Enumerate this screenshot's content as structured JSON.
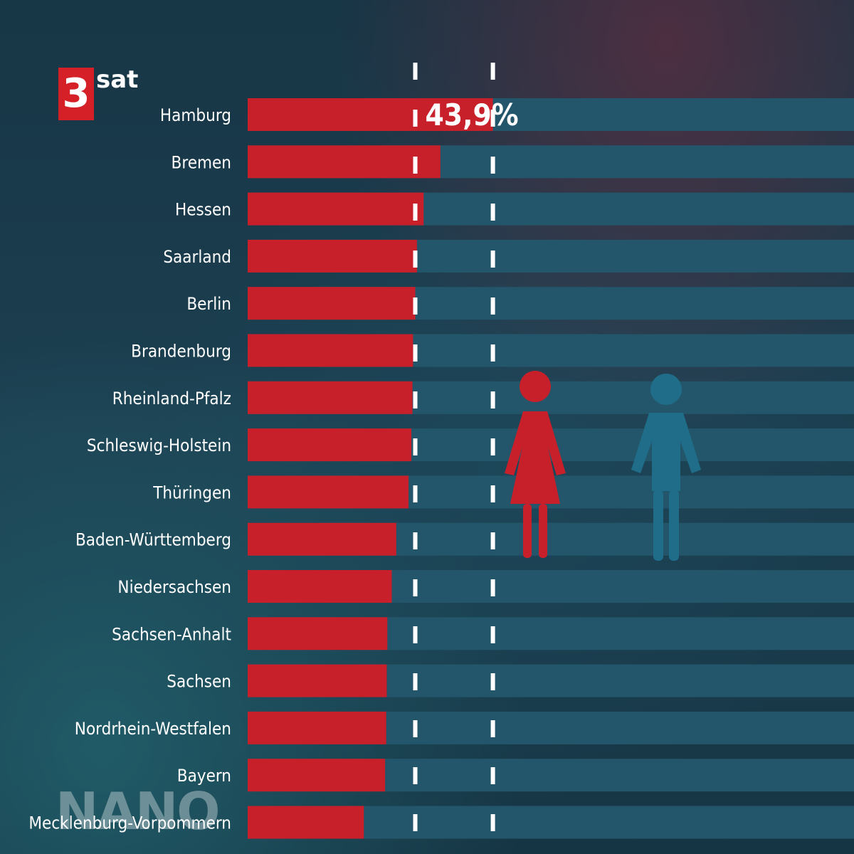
{
  "logo": {
    "number": "3",
    "word": "sat"
  },
  "watermark": "NANO",
  "colors": {
    "women": "#c8202a",
    "men_track": "#23566a",
    "marker": "#ffffff",
    "text": "#ffffff"
  },
  "icons": [
    "woman-icon",
    "man-icon"
  ],
  "chart_data": {
    "type": "bar",
    "orientation": "horizontal",
    "categories": [
      "Hamburg",
      "Bremen",
      "Hessen",
      "Saarland",
      "Berlin",
      "Brandenburg",
      "Rheinland-Pfalz",
      "Schleswig-Holstein",
      "Thüringen",
      "Baden-Württemberg",
      "Niedersachsen",
      "Sachsen-Anhalt",
      "Sachsen",
      "Nordrhein-Westfalen",
      "Bayern",
      "Mecklenburg-Vorpommern"
    ],
    "series": [
      {
        "values": [
          43.9,
          34.5,
          31.5,
          30.3,
          30.0,
          29.6,
          29.5,
          29.3,
          28.8,
          26.6,
          25.8,
          25.0,
          24.9,
          24.8,
          24.6,
          20.8
        ]
      }
    ],
    "data_labels": [
      {
        "category": "Hamburg",
        "text": "43,9%"
      }
    ],
    "xlim": [
      0,
      100
    ],
    "reference_lines": [
      30,
      43.9
    ],
    "grid": false,
    "legend": "none"
  }
}
